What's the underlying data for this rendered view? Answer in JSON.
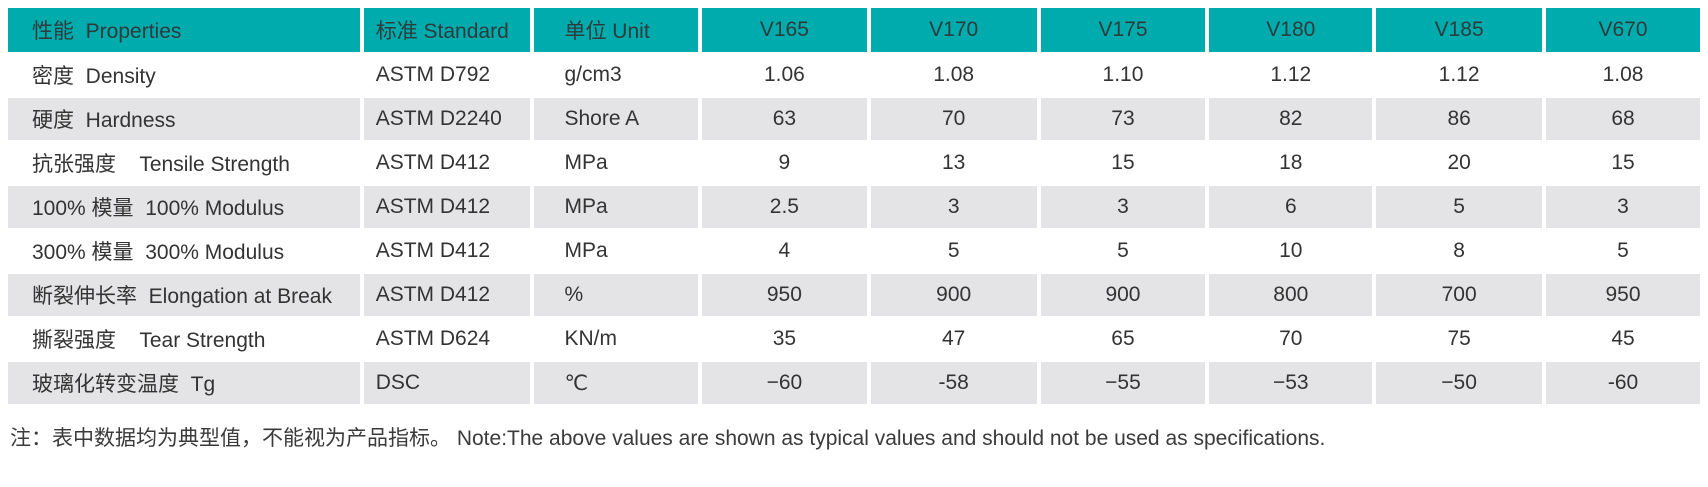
{
  "table": {
    "columns": [
      "性能  Properties",
      "标准 Standard",
      "单位 Unit",
      "V165",
      "V170",
      "V175",
      "V180",
      "V185",
      "V670"
    ],
    "rows": [
      {
        "property": "密度  Density",
        "standard": "ASTM D792",
        "unit": "g/cm3",
        "values": [
          "1.06",
          "1.08",
          "1.10",
          "1.12",
          "1.12",
          "1.08"
        ]
      },
      {
        "property": "硬度  Hardness",
        "standard": "ASTM D2240",
        "unit": "Shore A",
        "values": [
          "63",
          "70",
          "73",
          "82",
          "86",
          "68"
        ]
      },
      {
        "property": "抗张强度    Tensile Strength",
        "standard": "ASTM D412",
        "unit": "MPa",
        "values": [
          "9",
          "13",
          "15",
          "18",
          "20",
          "15"
        ]
      },
      {
        "property": "100% 模量  100% Modulus",
        "standard": "ASTM D412",
        "unit": "MPa",
        "values": [
          "2.5",
          "3",
          "3",
          "6",
          "5",
          "3"
        ]
      },
      {
        "property": "300% 模量  300% Modulus",
        "standard": "ASTM D412",
        "unit": "MPa",
        "values": [
          "4",
          "5",
          "5",
          "10",
          "8",
          "5"
        ]
      },
      {
        "property": "断裂伸长率  Elongation at Break",
        "standard": "ASTM D412",
        "unit": "%",
        "values": [
          "950",
          "900",
          "900",
          "800",
          "700",
          "950"
        ]
      },
      {
        "property": "撕裂强度    Tear Strength",
        "standard": "ASTM D624",
        "unit": "KN/m",
        "values": [
          "35",
          "47",
          "65",
          "70",
          "75",
          "45"
        ]
      },
      {
        "property": "玻璃化转变温度  Tg",
        "standard": "DSC",
        "unit": "℃",
        "values": [
          "−60",
          "-58",
          "−55",
          "−53",
          "−50",
          "-60"
        ]
      }
    ]
  },
  "note": "注：表中数据均为典型值，不能视为产品指标。 Note:The above values are shown as typical values and should not be used as specifications.",
  "colors": {
    "header_bg": "#00abad",
    "row_alt_bg": "#e4e4e6",
    "text": "#333333"
  }
}
